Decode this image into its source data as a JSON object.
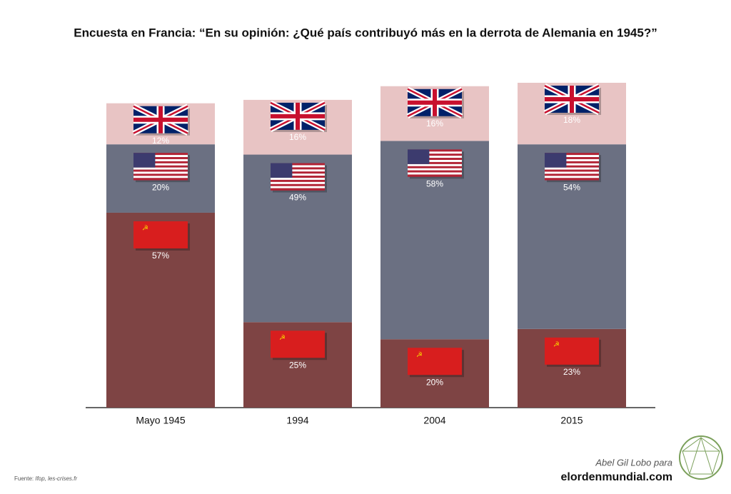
{
  "chart_data": {
    "type": "stacked_bar",
    "title": "Encuesta en Francia: “En su opinión: ¿Qué país contribuyó más en la derrota de Alemania en 1945?”",
    "categories": [
      "Mayo 1945",
      "1994",
      "2004",
      "2015"
    ],
    "series": [
      {
        "name": "URSS",
        "color": "#7e4444",
        "values": [
          57,
          25,
          20,
          23
        ],
        "value_labels": [
          "57%",
          "25%",
          "20%",
          "23%"
        ]
      },
      {
        "name": "Estados Unidos",
        "color": "#6b7082",
        "values": [
          20,
          49,
          58,
          54
        ],
        "value_labels": [
          "20%",
          "49%",
          "58%",
          "54%"
        ]
      },
      {
        "name": "Reino Unido",
        "color": "#e8c4c4",
        "values": [
          12,
          16,
          16,
          18
        ],
        "value_labels": [
          "12%",
          "16%",
          "16%",
          "18%"
        ]
      }
    ],
    "source_prefix": "Fuente: ",
    "source_italic": "Ifop, les-crises.fr",
    "credit": "Abel Gil Lobo para",
    "site": "elordenmundial.com"
  }
}
